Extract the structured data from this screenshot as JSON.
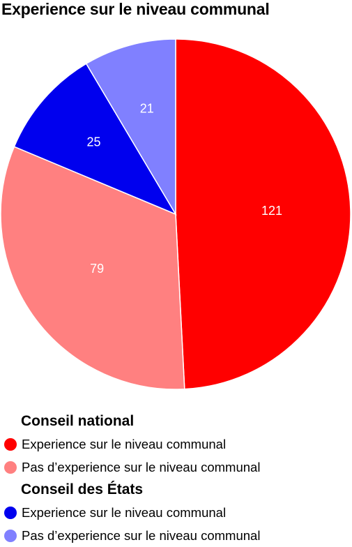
{
  "chart_data": {
    "type": "pie",
    "title": "Experience sur le niveau communal",
    "series": [
      {
        "name": "Conseil national",
        "slices": [
          {
            "label": "Experience sur le niveau communal",
            "value": 121,
            "color": "#ff0000"
          },
          {
            "label": "Pas d’experience sur le niveau communal",
            "value": 79,
            "color": "#ff8080"
          }
        ]
      },
      {
        "name": "Conseil des États",
        "slices": [
          {
            "label": "Experience sur le niveau communal",
            "value": 25,
            "color": "#0000ee"
          },
          {
            "label": "Pas d’experience sur le niveau communal",
            "value": 21,
            "color": "#8080ff"
          }
        ]
      }
    ],
    "legend_position": "bottom"
  }
}
